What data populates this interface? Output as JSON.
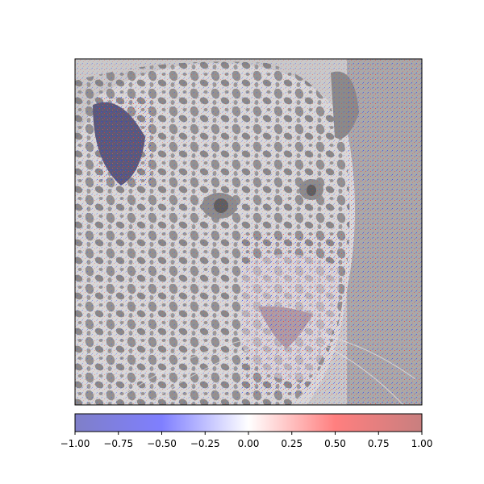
{
  "image": {
    "subject": "jaguar face with attribution heatmap overlay",
    "overlay_colormap": "bwr",
    "overlay_alpha": 0.5
  },
  "colorbar": {
    "orientation": "horizontal",
    "vmin": -1.0,
    "vmax": 1.0,
    "colors": [
      "#0000ff",
      "#ffffff",
      "#ff0000"
    ],
    "ticks": [
      {
        "value": -1.0,
        "label": "−1.00"
      },
      {
        "value": -0.75,
        "label": "−0.75"
      },
      {
        "value": -0.5,
        "label": "−0.50"
      },
      {
        "value": -0.25,
        "label": "−0.25"
      },
      {
        "value": 0.0,
        "label": "0.00"
      },
      {
        "value": 0.25,
        "label": "0.25"
      },
      {
        "value": 0.5,
        "label": "0.50"
      },
      {
        "value": 0.75,
        "label": "0.75"
      },
      {
        "value": 1.0,
        "label": "1.00"
      }
    ]
  }
}
